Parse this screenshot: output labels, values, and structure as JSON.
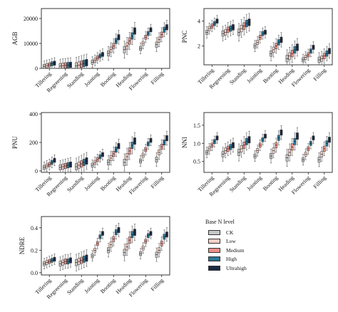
{
  "legend": {
    "title": "Base N level",
    "items": [
      {
        "label": "CK",
        "color": "#c8c8c8"
      },
      {
        "label": "Low",
        "color": "#f5cfc6"
      },
      {
        "label": "Medium",
        "color": "#ef8f88"
      },
      {
        "label": "High",
        "color": "#2b7594"
      },
      {
        "label": "Ultrahigh",
        "color": "#1c2a44"
      }
    ]
  },
  "chart_data": [
    {
      "type": "box",
      "ylabel": "AGB",
      "ylim": [
        0,
        24000
      ],
      "yticks": [
        0,
        10000,
        20000
      ],
      "ytick_labels": [
        "0",
        "10000",
        "20000"
      ],
      "categories": [
        "Tillering",
        "Regreening",
        "Standing",
        "Jointing",
        "Booting",
        "Heading",
        "Flowering",
        "Filling"
      ],
      "series": [
        {
          "name": "CK",
          "medians": [
            800,
            900,
            1000,
            2500,
            6000,
            7500,
            8000,
            9500
          ]
        },
        {
          "name": "Low",
          "medians": [
            1100,
            1100,
            1300,
            3200,
            7500,
            9000,
            10000,
            11500
          ]
        },
        {
          "name": "Medium",
          "medians": [
            1400,
            1200,
            1700,
            4200,
            9000,
            11000,
            12500,
            13500
          ]
        },
        {
          "name": "High",
          "medians": [
            1800,
            1350,
            2000,
            5000,
            11000,
            13000,
            14000,
            15500
          ]
        },
        {
          "name": "Ultrahigh",
          "medians": [
            2100,
            1450,
            2300,
            5600,
            12500,
            15000,
            15500,
            16500
          ]
        }
      ]
    },
    {
      "type": "box",
      "ylabel": "PNC",
      "ylim": [
        0.5,
        5
      ],
      "yticks": [
        2,
        4
      ],
      "ytick_labels": [
        "2",
        "4"
      ],
      "categories": [
        "Tillering",
        "Regreening",
        "Standing",
        "Jointing",
        "Booting",
        "Heading",
        "Flowering",
        "Filling"
      ],
      "series": [
        {
          "name": "CK",
          "medians": [
            3.1,
            3.0,
            3.1,
            2.0,
            1.4,
            1.0,
            0.9,
            0.9
          ]
        },
        {
          "name": "Low",
          "medians": [
            3.4,
            3.1,
            3.4,
            2.3,
            1.7,
            1.2,
            1.1,
            1.0
          ]
        },
        {
          "name": "Medium",
          "medians": [
            3.6,
            3.3,
            3.6,
            2.7,
            2.0,
            1.4,
            1.3,
            1.2
          ]
        },
        {
          "name": "High",
          "medians": [
            3.8,
            3.4,
            3.8,
            3.0,
            2.3,
            1.7,
            1.6,
            1.4
          ]
        },
        {
          "name": "Ultrahigh",
          "medians": [
            4.0,
            3.5,
            3.9,
            3.1,
            2.5,
            1.9,
            1.9,
            1.6
          ]
        }
      ]
    },
    {
      "type": "box",
      "ylabel": "PNU",
      "ylim": [
        -10,
        410
      ],
      "yticks": [
        0,
        200,
        400
      ],
      "ytick_labels": [
        "0",
        "200",
        "400"
      ],
      "categories": [
        "Tillering",
        "Regreening",
        "Standing",
        "Jointing",
        "Booting",
        "Heading",
        "Flowering",
        "Filling"
      ],
      "series": [
        {
          "name": "CK",
          "medians": [
            25,
            25,
            30,
            40,
            60,
            60,
            70,
            80
          ]
        },
        {
          "name": "Low",
          "medians": [
            35,
            30,
            40,
            60,
            90,
            100,
            110,
            130
          ]
        },
        {
          "name": "Medium",
          "medians": [
            45,
            35,
            50,
            80,
            120,
            140,
            150,
            170
          ]
        },
        {
          "name": "High",
          "medians": [
            60,
            40,
            60,
            100,
            150,
            180,
            190,
            200
          ]
        },
        {
          "name": "Ultrahigh",
          "medians": [
            75,
            45,
            70,
            115,
            175,
            210,
            215,
            230
          ]
        }
      ]
    },
    {
      "type": "box",
      "ylabel": "NNI",
      "ylim": [
        0.2,
        1.85
      ],
      "yticks": [
        0.5,
        1.0,
        1.5
      ],
      "ytick_labels": [
        "0.5",
        "1.0",
        "1.5"
      ],
      "categories": [
        "Tillering",
        "Regreening",
        "Standing",
        "Jointing",
        "Booting",
        "Heading",
        "Flowering",
        "Filling"
      ],
      "series": [
        {
          "name": "CK",
          "medians": [
            0.75,
            0.7,
            0.75,
            0.65,
            0.65,
            0.6,
            0.55,
            0.55
          ]
        },
        {
          "name": "Low",
          "medians": [
            0.85,
            0.8,
            0.85,
            0.8,
            0.8,
            0.75,
            0.7,
            0.7
          ]
        },
        {
          "name": "Medium",
          "medians": [
            0.95,
            0.85,
            0.95,
            0.95,
            0.95,
            0.9,
            0.85,
            0.85
          ]
        },
        {
          "name": "High",
          "medians": [
            1.05,
            0.9,
            1.05,
            1.1,
            1.15,
            1.05,
            1.0,
            1.0
          ]
        },
        {
          "name": "Ultrahigh",
          "medians": [
            1.15,
            0.95,
            1.1,
            1.2,
            1.3,
            1.2,
            1.15,
            1.1
          ]
        }
      ]
    },
    {
      "type": "box",
      "ylabel": "NDRE",
      "ylim": [
        -0.02,
        0.5
      ],
      "yticks": [
        0.0,
        0.2,
        0.4
      ],
      "ytick_labels": [
        "0.0",
        "0.2",
        "0.4"
      ],
      "categories": [
        "Tillering",
        "Regreening",
        "Standing",
        "Jointing",
        "Booting",
        "Heading",
        "Flowering",
        "Filling"
      ],
      "series": [
        {
          "name": "CK",
          "medians": [
            0.08,
            0.08,
            0.09,
            0.15,
            0.2,
            0.18,
            0.17,
            0.16
          ]
        },
        {
          "name": "Low",
          "medians": [
            0.09,
            0.09,
            0.1,
            0.2,
            0.25,
            0.23,
            0.22,
            0.2
          ]
        },
        {
          "name": "Medium",
          "medians": [
            0.1,
            0.1,
            0.11,
            0.26,
            0.3,
            0.29,
            0.28,
            0.26
          ]
        },
        {
          "name": "High",
          "medians": [
            0.11,
            0.1,
            0.12,
            0.32,
            0.36,
            0.34,
            0.33,
            0.32
          ]
        },
        {
          "name": "Ultrahigh",
          "medians": [
            0.12,
            0.11,
            0.13,
            0.35,
            0.38,
            0.36,
            0.35,
            0.34
          ]
        }
      ]
    }
  ]
}
